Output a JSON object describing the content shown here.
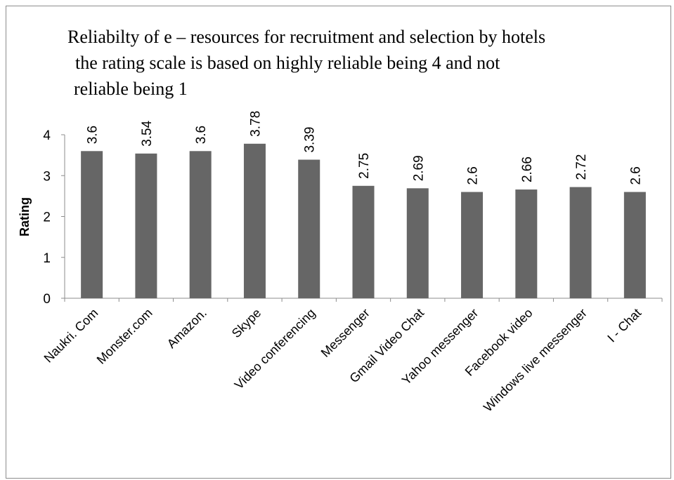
{
  "chart_data": {
    "type": "bar",
    "title_lines": [
      "Reliabilty  of e – resources for recruitment and selection by hotels",
      "the rating scale is based on highly reliable being 4 and not",
      "reliable being 1"
    ],
    "xlabel": "",
    "ylabel": "Rating",
    "ylim": [
      0,
      4
    ],
    "yticks": [
      "0",
      "1",
      "2",
      "3",
      "4"
    ],
    "categories": [
      "Naukri. Com",
      "Monster.com",
      "Amazon.",
      "Skype",
      "Video conferencing",
      "Messenger",
      "Gmail Video Chat",
      "Yahoo messenger",
      "Facebook video",
      "Windows live messenger",
      "I - Chat"
    ],
    "values": [
      3.6,
      3.54,
      3.6,
      3.78,
      3.39,
      2.75,
      2.69,
      2.6,
      2.66,
      2.72,
      2.6
    ],
    "data_labels": [
      "3.6",
      "3.54",
      "3.6",
      "3.78",
      "3.39",
      "2.75",
      "2.69",
      "2.6",
      "2.66",
      "2.72",
      "2.6"
    ],
    "bar_color": "#666666",
    "grid": false,
    "legend": "none"
  }
}
